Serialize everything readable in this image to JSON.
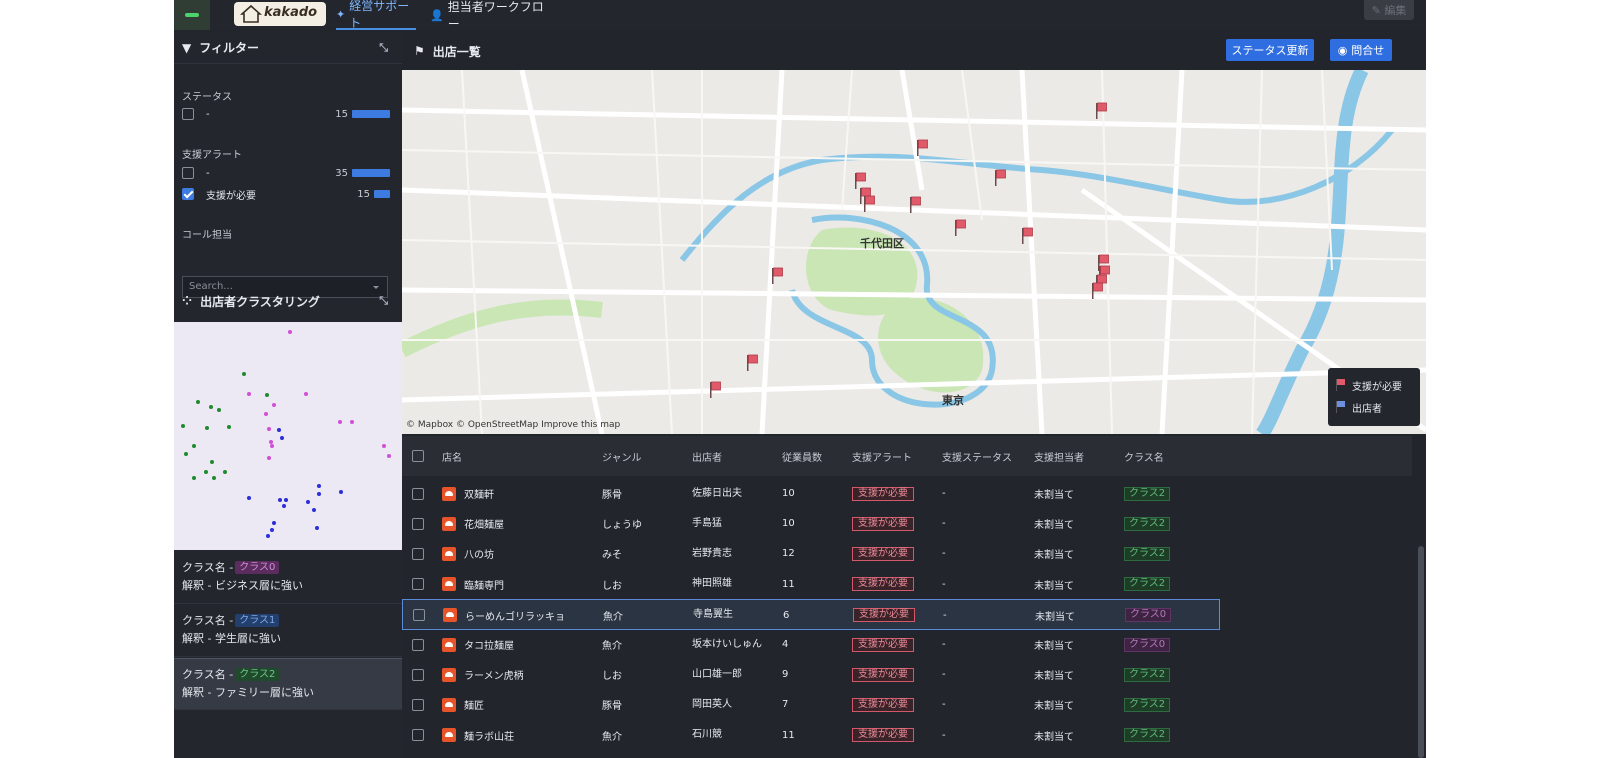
{
  "topbar": {
    "logo_text": "kakado",
    "tabs": [
      {
        "label": "経営サポート",
        "icon": "sparkle-icon",
        "active": true
      },
      {
        "label": "担当者ワークフロー",
        "icon": "user-icon",
        "active": false
      }
    ],
    "edit_label": "編集"
  },
  "filter": {
    "title": "フィルター",
    "status": {
      "label": "ステータス",
      "items": [
        {
          "value": "-",
          "count": "15",
          "checked": false,
          "level": 1.0
        }
      ]
    },
    "alert": {
      "label": "支援アラート",
      "items": [
        {
          "value": "-",
          "count": "35",
          "checked": false,
          "level": 1.0
        },
        {
          "value": "支援が必要",
          "count": "15",
          "checked": true,
          "level": 0.43
        }
      ]
    },
    "caller": {
      "label": "コール担当",
      "placeholder": "Search..."
    }
  },
  "clustering": {
    "title": "出店者クラスタリング",
    "cards": [
      {
        "name_label": "クラス名 -",
        "chip": "クラス0",
        "desc": "解釈 - ビジネス層に強い"
      },
      {
        "name_label": "クラス名 -",
        "chip": "クラス1",
        "desc": "解釈 - 学生層に強い"
      },
      {
        "name_label": "クラス名 -",
        "chip": "クラス2",
        "desc": "解釈 - ファミリー層に強い"
      }
    ]
  },
  "main": {
    "title": "出店一覧",
    "status_button": "ステータス更新",
    "contact_button": "問合せ"
  },
  "map": {
    "attribution": "© Mapbox © OpenStreetMap  Improve this map",
    "labels": [
      "千代田区",
      "東京"
    ],
    "legend": [
      {
        "label": "支援が必要",
        "color": "#e05a6a"
      },
      {
        "label": "出店者",
        "color": "#6d8fe0"
      }
    ]
  },
  "table": {
    "headers": [
      "店名",
      "ジャンル",
      "出店者",
      "従業員数",
      "支援アラート",
      "支援ステータス",
      "支援担当者",
      "クラス名"
    ],
    "rows": [
      {
        "name": "双麺軒",
        "genre": "豚骨",
        "owner": "佐藤日出夫",
        "staff": "10",
        "alert": "支援が必要",
        "status": "-",
        "assignee": "未割当て",
        "class": "クラス2"
      },
      {
        "name": "花畑麺屋",
        "genre": "しょうゆ",
        "owner": "手島猛",
        "staff": "10",
        "alert": "支援が必要",
        "status": "-",
        "assignee": "未割当て",
        "class": "クラス2"
      },
      {
        "name": "八の坊",
        "genre": "みそ",
        "owner": "岩野貴志",
        "staff": "12",
        "alert": "支援が必要",
        "status": "-",
        "assignee": "未割当て",
        "class": "クラス2"
      },
      {
        "name": "臨麺専門",
        "genre": "しお",
        "owner": "神田照雄",
        "staff": "11",
        "alert": "支援が必要",
        "status": "-",
        "assignee": "未割当て",
        "class": "クラス2"
      },
      {
        "name": "らーめんゴリラッキョ",
        "genre": "魚介",
        "owner": "寺島翼生",
        "staff": "6",
        "alert": "支援が必要",
        "status": "-",
        "assignee": "未割当て",
        "class": "クラス0"
      },
      {
        "name": "タコ拉麺屋",
        "genre": "魚介",
        "owner": "坂本けいしゅん",
        "staff": "4",
        "alert": "支援が必要",
        "status": "-",
        "assignee": "未割当て",
        "class": "クラス0"
      },
      {
        "name": "ラーメン虎柄",
        "genre": "しお",
        "owner": "山口雄一郎",
        "staff": "9",
        "alert": "支援が必要",
        "status": "-",
        "assignee": "未割当て",
        "class": "クラス2"
      },
      {
        "name": "麺匠",
        "genre": "豚骨",
        "owner": "岡田英人",
        "staff": "7",
        "alert": "支援が必要",
        "status": "-",
        "assignee": "未割当て",
        "class": "クラス2"
      },
      {
        "name": "麺ラボ山荘",
        "genre": "魚介",
        "owner": "石川競",
        "staff": "11",
        "alert": "支援が必要",
        "status": "-",
        "assignee": "未割当て",
        "class": "クラス2"
      }
    ]
  },
  "colors": {
    "accent": "#2f6ee0",
    "alert": "#d2586a",
    "cluster0": "#d14fd6",
    "cluster1": "#2a2fd8",
    "cluster2": "#1f8a2e"
  }
}
